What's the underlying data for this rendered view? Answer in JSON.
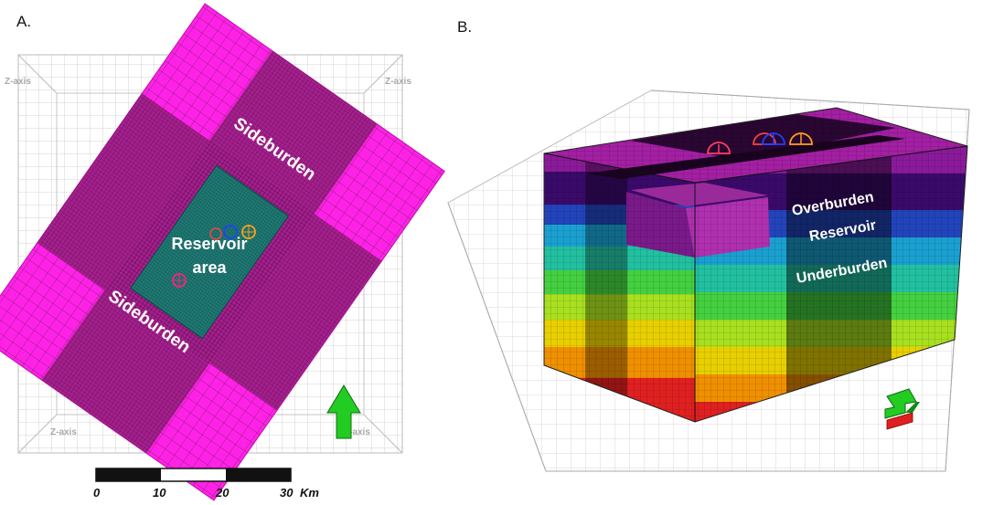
{
  "panel_a": {
    "label": "A.",
    "axis_labels": [
      "Z-axis",
      "Z-axis",
      "Z-axis",
      "Z-axis"
    ],
    "annotations": {
      "sideburden_upper": "Sideburden",
      "sideburden_lower": "Sideburden",
      "reservoir_line1": "Reservoir",
      "reservoir_line2": "area"
    },
    "scale_bar": {
      "ticks": [
        "0",
        "10",
        "20",
        "30"
      ],
      "unit": "Km"
    },
    "north_arrow": "arrow-up-icon"
  },
  "panel_b": {
    "label": "B.",
    "layers": {
      "overburden": "Overburden",
      "reservoir": "Reservoir",
      "underburden": "Underburden"
    },
    "north_arrow": "arrow-3d-icon"
  },
  "colors": {
    "sideburden": "#ff22e6",
    "sideburden_dark": "#a4208c",
    "reservoir": "#1f7a75",
    "arrow": "#22cc22",
    "layer_bands": [
      "#7a1a96",
      "#3a0a6a",
      "#2244bb",
      "#1aa0d0",
      "#22c0a0",
      "#44d040",
      "#a8e020",
      "#e8d000",
      "#f09000",
      "#e02020"
    ]
  }
}
